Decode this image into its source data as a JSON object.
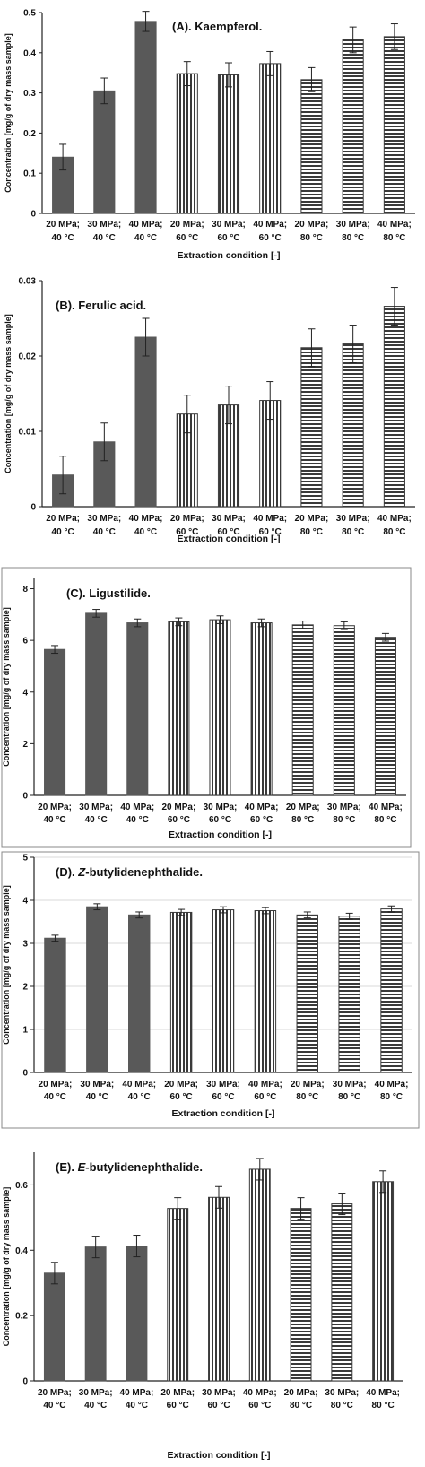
{
  "chart_data": [
    {
      "type": "bar",
      "title": "(A). Kaempferol.",
      "xlabel": "Extraction condition [-]",
      "ylabel": "Concentration [mg/g of dry mass sample]",
      "categories": [
        [
          "20 MPa;",
          "40 °C"
        ],
        [
          "30 MPa;",
          "40 °C"
        ],
        [
          "40 MPa;",
          "40 °C"
        ],
        [
          "20 MPa;",
          "60 °C"
        ],
        [
          "30 MPa;",
          "60 °C"
        ],
        [
          "40 MPa;",
          "60 °C"
        ],
        [
          "20 MPa;",
          "80 °C"
        ],
        [
          "30 MPa;",
          "80 °C"
        ],
        [
          "40 MPa;",
          "80 °C"
        ]
      ],
      "patterns": [
        "solid",
        "solid",
        "solid",
        "vertical",
        "vertical",
        "vertical",
        "horizontal",
        "horizontal",
        "horizontal"
      ],
      "values": [
        0.14,
        0.305,
        0.478,
        0.348,
        0.345,
        0.373,
        0.333,
        0.432,
        0.44
      ],
      "errors": [
        0.032,
        0.032,
        0.025,
        0.03,
        0.03,
        0.03,
        0.03,
        0.032,
        0.032
      ],
      "ylim": [
        0,
        0.5
      ],
      "yticks": [
        "0",
        "0.1",
        "0.2",
        "0.3",
        "0.4",
        "0.5"
      ],
      "grid": false
    },
    {
      "type": "bar",
      "title": "(B). Ferulic acid.",
      "xlabel": "Extraction condition [-]",
      "ylabel": "Concentration [mg/g of dry mass sample]",
      "categories": [
        [
          "20 MPa;",
          "40 °C"
        ],
        [
          "30 MPa;",
          "40 °C"
        ],
        [
          "40 MPa;",
          "40 °C"
        ],
        [
          "20 MPa;",
          "60 °C"
        ],
        [
          "30 MPa;",
          "60 °C"
        ],
        [
          "40 MPa;",
          "60 °C"
        ],
        [
          "20 MPa;",
          "80 °C"
        ],
        [
          "30 MPa;",
          "80 °C"
        ],
        [
          "40 MPa;",
          "80 °C"
        ]
      ],
      "patterns": [
        "solid",
        "solid",
        "solid",
        "vertical",
        "vertical",
        "vertical",
        "horizontal",
        "horizontal",
        "horizontal"
      ],
      "values": [
        0.0042,
        0.0086,
        0.0225,
        0.0123,
        0.0135,
        0.0141,
        0.0211,
        0.0216,
        0.0266
      ],
      "errors": [
        0.0025,
        0.0025,
        0.0025,
        0.0025,
        0.0025,
        0.0025,
        0.0025,
        0.0025,
        0.0025
      ],
      "ylim": [
        0,
        0.03
      ],
      "yticks": [
        "0",
        "0.01",
        "0.02",
        "0.03"
      ],
      "grid": false
    },
    {
      "type": "bar",
      "title": "(C). Ligustilide.",
      "xlabel": "Extraction condition [-]",
      "ylabel": "Concentration [mg/g of dry mass sample]",
      "categories": [
        [
          "20 MPa;",
          "40 °C"
        ],
        [
          "30 MPa;",
          "40 °C"
        ],
        [
          "40 MPa;",
          "40 °C"
        ],
        [
          "20 MPa;",
          "60 °C"
        ],
        [
          "30 MPa;",
          "60 °C"
        ],
        [
          "40 MPa;",
          "60 °C"
        ],
        [
          "20 MPa;",
          "80 °C"
        ],
        [
          "30 MPa;",
          "80 °C"
        ],
        [
          "40 MPa;",
          "80 °C"
        ]
      ],
      "patterns": [
        "solid",
        "solid",
        "solid",
        "vertical",
        "vertical",
        "vertical",
        "horizontal",
        "horizontal",
        "horizontal"
      ],
      "values": [
        5.65,
        7.05,
        6.68,
        6.72,
        6.8,
        6.68,
        6.6,
        6.57,
        6.12
      ],
      "errors": [
        0.15,
        0.15,
        0.15,
        0.15,
        0.15,
        0.15,
        0.15,
        0.15,
        0.15
      ],
      "ylim": [
        0,
        8.4
      ],
      "yticks": [
        "0",
        "2",
        "4",
        "6",
        "8"
      ],
      "grid": false
    },
    {
      "type": "bar",
      "title": "(D). Z-butylidenephthalide.",
      "title_italic": "Z",
      "xlabel": "Extraction condition [-]",
      "ylabel": "Concentration [mg/g of dry mass sample]",
      "categories": [
        [
          "20 MPa;",
          "40 °C"
        ],
        [
          "30 MPa;",
          "40 °C"
        ],
        [
          "40 MPa;",
          "40 °C"
        ],
        [
          "20 MPa;",
          "60 °C"
        ],
        [
          "30 MPa;",
          "60 °C"
        ],
        [
          "40 MPa;",
          "60 °C"
        ],
        [
          "20 MPa;",
          "80 °C"
        ],
        [
          "30 MPa;",
          "80 °C"
        ],
        [
          "40 MPa;",
          "80 °C"
        ]
      ],
      "patterns": [
        "solid",
        "solid",
        "solid",
        "vertical",
        "vertical",
        "vertical",
        "horizontal",
        "horizontal",
        "horizontal"
      ],
      "values": [
        3.12,
        3.85,
        3.66,
        3.72,
        3.78,
        3.76,
        3.66,
        3.63,
        3.8
      ],
      "errors": [
        0.07,
        0.07,
        0.07,
        0.07,
        0.07,
        0.07,
        0.07,
        0.07,
        0.07
      ],
      "ylim": [
        0,
        5
      ],
      "yticks": [
        "0",
        "1",
        "2",
        "3",
        "4",
        "5"
      ],
      "grid": true
    },
    {
      "type": "bar",
      "title": "(E). E-butylidenephthalide.",
      "title_italic": "E",
      "xlabel": "Extraction condition [-]",
      "ylabel": "Concentration [mg/g of dry mass sample]",
      "categories": [
        [
          "20 MPa;",
          "40 °C"
        ],
        [
          "30 MPa;",
          "40 °C"
        ],
        [
          "40 MPa;",
          "40 °C"
        ],
        [
          "20 MPa;",
          "60 °C"
        ],
        [
          "30 MPa;",
          "60 °C"
        ],
        [
          "40 MPa;",
          "60 °C"
        ],
        [
          "20 MPa;",
          "80 °C"
        ],
        [
          "30 MPa;",
          "80 °C"
        ],
        [
          "40 MPa;",
          "80 °C"
        ]
      ],
      "patterns": [
        "solid",
        "solid",
        "solid",
        "vertical",
        "vertical",
        "vertical",
        "horizontal",
        "horizontal",
        "vertical"
      ],
      "values": [
        0.33,
        0.41,
        0.413,
        0.528,
        0.562,
        0.648,
        0.528,
        0.542,
        0.61
      ],
      "errors": [
        0.033,
        0.033,
        0.033,
        0.033,
        0.033,
        0.033,
        0.033,
        0.033,
        0.033
      ],
      "ylim": [
        0,
        0.7
      ],
      "yticks": [
        "0",
        "0.2",
        "0.4",
        "0.6"
      ],
      "ytick_values": [
        0,
        0.2,
        0.4,
        0.6
      ],
      "grid": false
    }
  ],
  "colors": {
    "solid_fill": "#595959",
    "pattern_stroke": "#3a3a3a",
    "axis": "#222222",
    "frame": "#888888",
    "grid": "#d9d9d9"
  }
}
